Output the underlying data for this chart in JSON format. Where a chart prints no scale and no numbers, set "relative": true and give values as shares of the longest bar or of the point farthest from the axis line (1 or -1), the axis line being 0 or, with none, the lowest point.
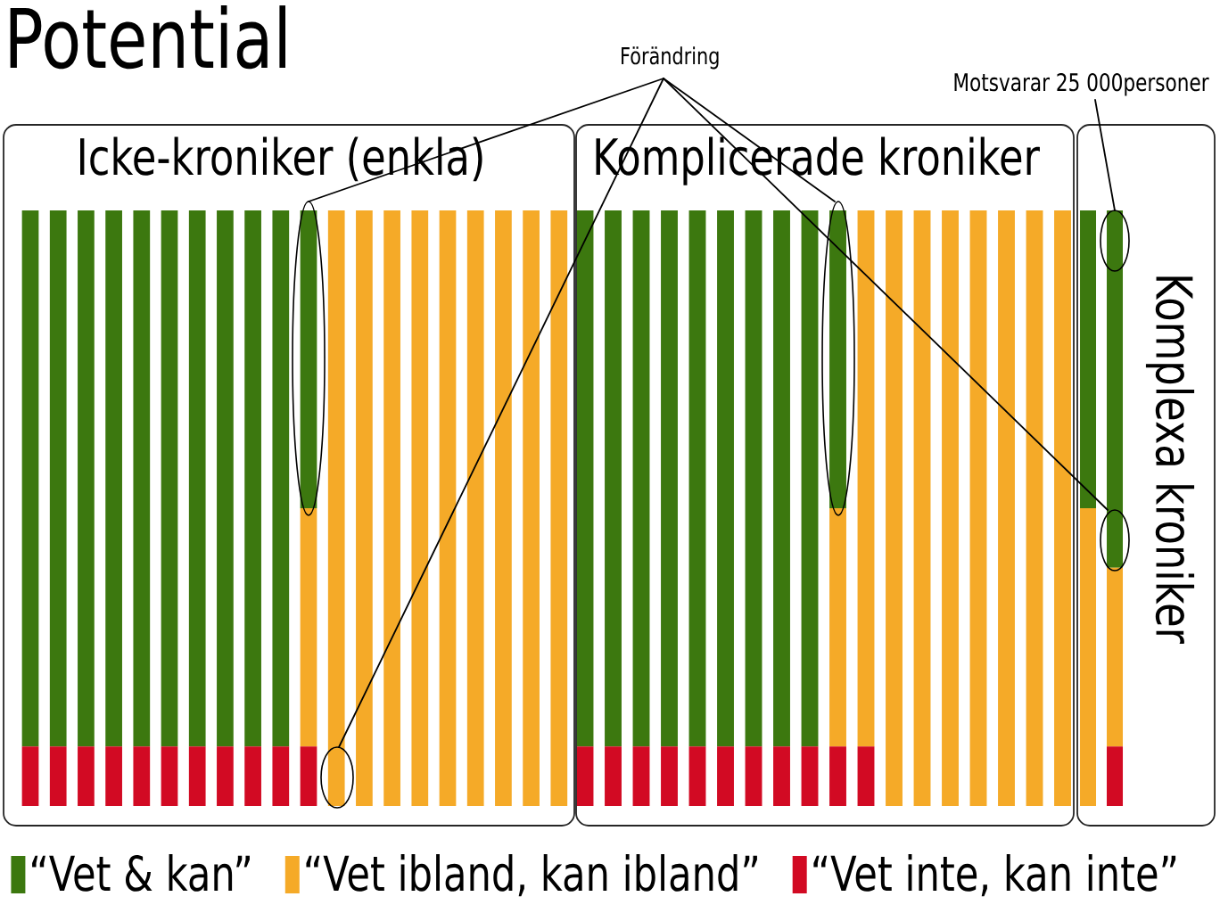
{
  "chart_data": [
    {
      "type": "bar",
      "title": "Potential",
      "subtitle": "Icke-kroniker (enkla)",
      "stacked": true,
      "relative": true,
      "legend": "bottom",
      "categories": [
        null,
        null,
        null,
        null,
        null,
        null,
        null,
        null,
        null,
        null,
        null,
        null,
        null,
        null,
        null,
        null,
        null,
        null,
        null,
        null
      ],
      "series": [
        {
          "name": "“Vet inte, kan inte”",
          "color": "#d20a23",
          "values": [
            0.1,
            0.1,
            0.1,
            0.1,
            0.1,
            0.1,
            0.1,
            0.1,
            0.1,
            0.1,
            0.1,
            0,
            0,
            0,
            0,
            0,
            0,
            0,
            0,
            0
          ]
        },
        {
          "name": "“Vet ibland, kan ibland”",
          "color": "#f5aa28",
          "values": [
            0,
            0,
            0,
            0,
            0,
            0,
            0,
            0,
            0,
            0,
            0.4,
            1,
            1,
            1,
            1,
            1,
            1,
            1,
            1,
            1
          ]
        },
        {
          "name": "“Vet & kan”",
          "color": "#3c780f",
          "values": [
            0.9,
            0.9,
            0.9,
            0.9,
            0.9,
            0.9,
            0.9,
            0.9,
            0.9,
            0.9,
            0.5,
            0,
            0,
            0,
            0,
            0,
            0,
            0,
            0,
            0
          ]
        }
      ]
    },
    {
      "type": "bar",
      "title": "Komplicerade kroniker",
      "stacked": true,
      "relative": true,
      "annotations": [
        "Förändring"
      ],
      "categories": [
        null,
        null,
        null,
        null,
        null,
        null,
        null,
        null,
        null,
        null,
        null,
        null,
        null,
        null,
        null,
        null,
        null,
        null
      ],
      "series": [
        {
          "color": "#d20a23",
          "values": [
            0.1,
            0.1,
            0.1,
            0.1,
            0.1,
            0.1,
            0.1,
            0.1,
            0.1,
            0.1,
            0.1,
            0,
            0,
            0,
            0,
            0,
            0,
            0
          ]
        },
        {
          "color": "#f5aa28",
          "values": [
            0,
            0,
            0,
            0,
            0,
            0,
            0,
            0,
            0,
            0.4,
            0.9,
            1,
            1,
            1,
            1,
            1,
            1,
            1
          ]
        },
        {
          "color": "#3c780f",
          "values": [
            0.9,
            0.9,
            0.9,
            0.9,
            0.9,
            0.9,
            0.9,
            0.9,
            0.9,
            0.5,
            0,
            0,
            0,
            0,
            0,
            0,
            0,
            0
          ]
        }
      ]
    },
    {
      "type": "bar",
      "title": "Komplexa kroniker",
      "stacked": true,
      "relative": true,
      "annotations": [
        "Motsvarar 25 000personer"
      ],
      "categories": [
        null,
        null
      ],
      "series": [
        {
          "color": "#d20a23",
          "values": [
            0,
            0.1
          ]
        },
        {
          "color": "#f5aa28",
          "values": [
            0.5,
            0.3
          ]
        },
        {
          "color": "#3c780f",
          "values": [
            0.5,
            0.6
          ]
        }
      ]
    }
  ]
}
